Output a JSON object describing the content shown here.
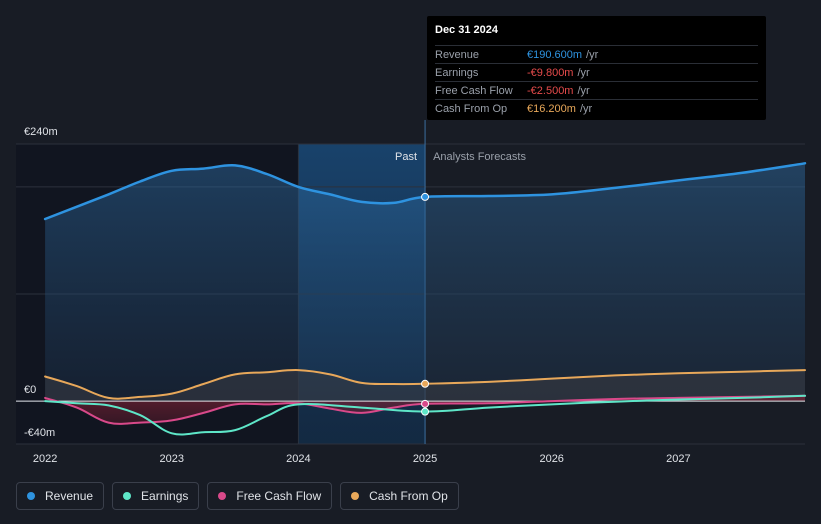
{
  "tooltip": {
    "date": "Dec 31 2024",
    "rows": [
      {
        "label": "Revenue",
        "value": "€190.600m",
        "unit": "/yr",
        "color": "#2e93e0"
      },
      {
        "label": "Earnings",
        "value": "-€9.800m",
        "unit": "/yr",
        "color": "#e64b4b"
      },
      {
        "label": "Free Cash Flow",
        "value": "-€2.500m",
        "unit": "/yr",
        "color": "#e64b4b"
      },
      {
        "label": "Cash From Op",
        "value": "€16.200m",
        "unit": "/yr",
        "color": "#e8a85a"
      }
    ]
  },
  "legend": [
    {
      "label": "Revenue",
      "color": "#2e93e0"
    },
    {
      "label": "Earnings",
      "color": "#5ee6c8"
    },
    {
      "label": "Free Cash Flow",
      "color": "#d9498a"
    },
    {
      "label": "Cash From Op",
      "color": "#e8a85a"
    }
  ],
  "chart_data": {
    "type": "line",
    "past_label": "Past",
    "forecast_label": "Analysts Forecasts",
    "divider_x": 2025.0,
    "highlight_range": [
      2024.0,
      2025.0
    ],
    "ylim": [
      -40,
      240
    ],
    "xlim": [
      2021.77,
      2028.0
    ],
    "y_ticks": [
      {
        "value": 240,
        "label": "€240m"
      },
      {
        "value": 0,
        "label": "€0"
      },
      {
        "value": -40,
        "label": "-€40m"
      }
    ],
    "x_ticks": [
      {
        "value": 2022,
        "label": "2022"
      },
      {
        "value": 2023,
        "label": "2023"
      },
      {
        "value": 2024,
        "label": "2024"
      },
      {
        "value": 2025,
        "label": "2025"
      },
      {
        "value": 2026,
        "label": "2026"
      },
      {
        "value": 2027,
        "label": "2027"
      }
    ],
    "grid_values": [
      240,
      200,
      100,
      0,
      -40
    ],
    "series": [
      {
        "name": "Revenue",
        "color": "#2e93e0",
        "fill": "#1e4a70",
        "points": [
          [
            2022.0,
            170
          ],
          [
            2022.5,
            193
          ],
          [
            2022.75,
            205
          ],
          [
            2023.0,
            215
          ],
          [
            2023.25,
            217
          ],
          [
            2023.5,
            220
          ],
          [
            2023.75,
            212
          ],
          [
            2024.0,
            200
          ],
          [
            2024.25,
            193
          ],
          [
            2024.5,
            186
          ],
          [
            2024.75,
            185
          ],
          [
            2025.0,
            190.6
          ],
          [
            2025.5,
            191.5
          ],
          [
            2026.0,
            193
          ],
          [
            2026.5,
            199
          ],
          [
            2027.0,
            206
          ],
          [
            2027.5,
            213
          ],
          [
            2028.0,
            222
          ]
        ]
      },
      {
        "name": "Earnings",
        "color": "#5ee6c8",
        "points": [
          [
            2022.0,
            0
          ],
          [
            2022.25,
            -2
          ],
          [
            2022.5,
            -4
          ],
          [
            2022.75,
            -13
          ],
          [
            2023.0,
            -30
          ],
          [
            2023.25,
            -29
          ],
          [
            2023.5,
            -27
          ],
          [
            2023.75,
            -14
          ],
          [
            2024.0,
            -3
          ],
          [
            2024.5,
            -6
          ],
          [
            2025.0,
            -9.8
          ],
          [
            2025.5,
            -6
          ],
          [
            2026.0,
            -3
          ],
          [
            2026.5,
            -0.5
          ],
          [
            2027.0,
            1.5
          ],
          [
            2027.5,
            3
          ],
          [
            2028.0,
            5
          ]
        ]
      },
      {
        "name": "Free Cash Flow",
        "color": "#d9498a",
        "fill": "#4a1a2c",
        "points": [
          [
            2022.0,
            3
          ],
          [
            2022.25,
            -6
          ],
          [
            2022.5,
            -20
          ],
          [
            2022.75,
            -20
          ],
          [
            2023.0,
            -18
          ],
          [
            2023.25,
            -11
          ],
          [
            2023.5,
            -3
          ],
          [
            2023.75,
            -3
          ],
          [
            2024.0,
            -2
          ],
          [
            2024.25,
            -7
          ],
          [
            2024.5,
            -11
          ],
          [
            2024.75,
            -6
          ],
          [
            2025.0,
            -2.5
          ],
          [
            2025.5,
            -2
          ],
          [
            2026.0,
            0
          ],
          [
            2026.5,
            2
          ],
          [
            2027.0,
            3
          ],
          [
            2027.5,
            4
          ],
          [
            2028.0,
            5
          ]
        ]
      },
      {
        "name": "Cash From Op",
        "color": "#e8a85a",
        "fill": "#3a3d44",
        "points": [
          [
            2022.0,
            23
          ],
          [
            2022.25,
            14
          ],
          [
            2022.5,
            3
          ],
          [
            2022.75,
            4
          ],
          [
            2023.0,
            7
          ],
          [
            2023.25,
            16
          ],
          [
            2023.5,
            25
          ],
          [
            2023.75,
            27
          ],
          [
            2024.0,
            29
          ],
          [
            2024.25,
            25
          ],
          [
            2024.5,
            17
          ],
          [
            2024.75,
            16
          ],
          [
            2025.0,
            16.2
          ],
          [
            2025.5,
            18
          ],
          [
            2026.0,
            21
          ],
          [
            2026.5,
            24
          ],
          [
            2027.0,
            26
          ],
          [
            2027.5,
            27.5
          ],
          [
            2028.0,
            29
          ]
        ]
      }
    ]
  }
}
